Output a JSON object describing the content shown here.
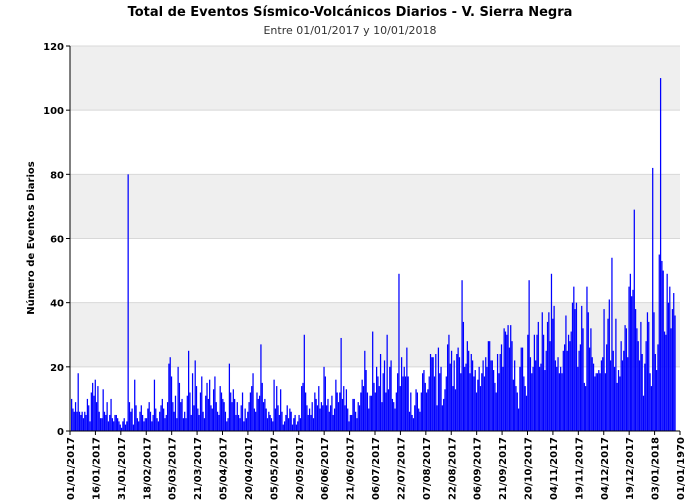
{
  "chart_data": {
    "type": "bar",
    "title": "Total de Eventos Sísmico-Volcánicos Diarios - V. Sierra Negra",
    "subtitle": "Entre 01/01/2017 y 10/01/2018",
    "ylabel": "Número de Eventos Diarios",
    "xlabel": "",
    "ylim": [
      0,
      120
    ],
    "yticks": [
      0,
      20,
      40,
      60,
      80,
      100,
      120
    ],
    "grid": "alternating-bands",
    "bar_color": "#0000ff",
    "x_start": "01/01/2017",
    "x_tick_labels": [
      "01/01/2017",
      "16/01/2017",
      "31/01/2017",
      "18/02/2017",
      "05/03/2017",
      "21/03/2017",
      "05/04/2017",
      "20/04/2017",
      "05/05/2017",
      "20/05/2017",
      "06/06/2017",
      "21/06/2017",
      "06/07/2017",
      "22/07/2017",
      "07/08/2017",
      "22/08/2017",
      "06/09/2017",
      "21/09/2017",
      "20/10/2017",
      "04/11/2017",
      "19/11/2017",
      "04/12/2017",
      "19/12/2017",
      "03/01/2018",
      "01/01/1970"
    ],
    "values": [
      10,
      7,
      6,
      9,
      6,
      18,
      6,
      5,
      6,
      4,
      6,
      5,
      10,
      8,
      3,
      12,
      15,
      11,
      16,
      9,
      14,
      6,
      4,
      4,
      13,
      6,
      5,
      9,
      3,
      5,
      10,
      4,
      3,
      5,
      5,
      4,
      3,
      2,
      1,
      3,
      4,
      2,
      3,
      80,
      9,
      6,
      7,
      2,
      16,
      8,
      4,
      3,
      6,
      8,
      5,
      3,
      4,
      4,
      7,
      9,
      6,
      3,
      5,
      16,
      7,
      4,
      3,
      6,
      8,
      10,
      7,
      4,
      5,
      9,
      21,
      23,
      17,
      9,
      6,
      11,
      4,
      20,
      15,
      9,
      10,
      4,
      6,
      4,
      11,
      25,
      12,
      5,
      18,
      8,
      22,
      14,
      7,
      5,
      12,
      17,
      6,
      4,
      11,
      15,
      10,
      16,
      8,
      7,
      13,
      17,
      9,
      6,
      5,
      14,
      12,
      10,
      9,
      6,
      3,
      4,
      21,
      12,
      9,
      13,
      10,
      5,
      9,
      5,
      4,
      8,
      12,
      3,
      7,
      4,
      6,
      9,
      12,
      14,
      18,
      7,
      6,
      12,
      10,
      11,
      27,
      15,
      9,
      10,
      7,
      4,
      6,
      5,
      4,
      3,
      16,
      7,
      14,
      8,
      5,
      13,
      6,
      2,
      3,
      5,
      8,
      4,
      7,
      6,
      2,
      4,
      5,
      2,
      3,
      5,
      4,
      14,
      15,
      30,
      12,
      8,
      5,
      7,
      5,
      9,
      4,
      12,
      10,
      8,
      14,
      7,
      9,
      8,
      20,
      17,
      8,
      10,
      6,
      8,
      11,
      5,
      7,
      16,
      12,
      9,
      12,
      29,
      10,
      14,
      8,
      13,
      7,
      3,
      5,
      5,
      10,
      10,
      6,
      4,
      9,
      8,
      12,
      16,
      14,
      25,
      19,
      12,
      7,
      11,
      11,
      31,
      15,
      12,
      20,
      17,
      14,
      24,
      9,
      18,
      22,
      12,
      30,
      13,
      20,
      22,
      10,
      9,
      7,
      12,
      18,
      49,
      14,
      23,
      17,
      20,
      17,
      26,
      17,
      6,
      12,
      5,
      4,
      8,
      13,
      12,
      7,
      6,
      12,
      18,
      19,
      15,
      12,
      13,
      17,
      24,
      23,
      23,
      17,
      24,
      8,
      26,
      18,
      20,
      8,
      10,
      13,
      17,
      27,
      30,
      21,
      25,
      14,
      22,
      13,
      24,
      26,
      23,
      18,
      47,
      34,
      20,
      21,
      28,
      25,
      18,
      24,
      22,
      17,
      19,
      12,
      16,
      20,
      14,
      18,
      22,
      17,
      23,
      20,
      28,
      28,
      22,
      22,
      19,
      15,
      12,
      24,
      18,
      24,
      27,
      20,
      32,
      31,
      30,
      33,
      26,
      33,
      28,
      16,
      22,
      14,
      12,
      7,
      20,
      26,
      26,
      17,
      14,
      11,
      30,
      47,
      23,
      18,
      20,
      30,
      22,
      30,
      34,
      20,
      21,
      37,
      30,
      19,
      25,
      34,
      37,
      28,
      49,
      35,
      39,
      22,
      20,
      23,
      18,
      20,
      18,
      25,
      27,
      36,
      25,
      30,
      28,
      31,
      40,
      45,
      38,
      40,
      20,
      25,
      27,
      39,
      32,
      15,
      14,
      45,
      37,
      26,
      32,
      23,
      21,
      17,
      18,
      18,
      19,
      18,
      22,
      23,
      38,
      18,
      27,
      35,
      41,
      22,
      54,
      25,
      20,
      35,
      15,
      19,
      17,
      28,
      22,
      25,
      33,
      32,
      23,
      45,
      49,
      42,
      44,
      69,
      38,
      32,
      28,
      22,
      34,
      24,
      11,
      21,
      28,
      37,
      34,
      18,
      14,
      82,
      37,
      24,
      19,
      27,
      55,
      110,
      53,
      50,
      31,
      30,
      49,
      40,
      45,
      32,
      38,
      43,
      36
    ]
  }
}
